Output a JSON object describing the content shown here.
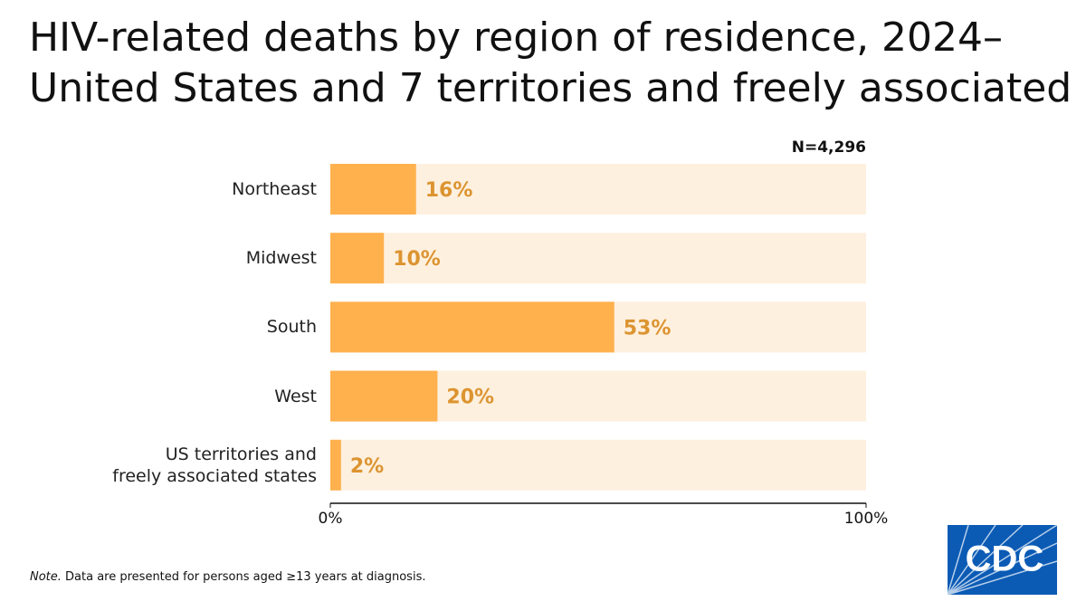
{
  "chart_data": {
    "type": "bar",
    "orientation": "horizontal",
    "title": "HIV-related deaths by region of residence, 2024–\nUnited States and 7 territories and freely associated",
    "annotation": "N=4,296",
    "categories": [
      "Northeast",
      "Midwest",
      "South",
      "West",
      "US territories and\nfreely associated states"
    ],
    "values": [
      16,
      10,
      53,
      20,
      2
    ],
    "value_labels": [
      "16%",
      "10%",
      "53%",
      "20%",
      "2%"
    ],
    "color": "#ffb14e",
    "track_color": "#fef0df",
    "label_color": "#dc9430",
    "xlim": [
      0,
      100
    ],
    "xticks": [
      {
        "value": 0,
        "label": "0%"
      },
      {
        "value": 100,
        "label": "100%"
      }
    ],
    "note_lead": "Note.",
    "note": " Data are presented for persons aged ≥13 years at diagnosis.",
    "logo": "CDC"
  }
}
